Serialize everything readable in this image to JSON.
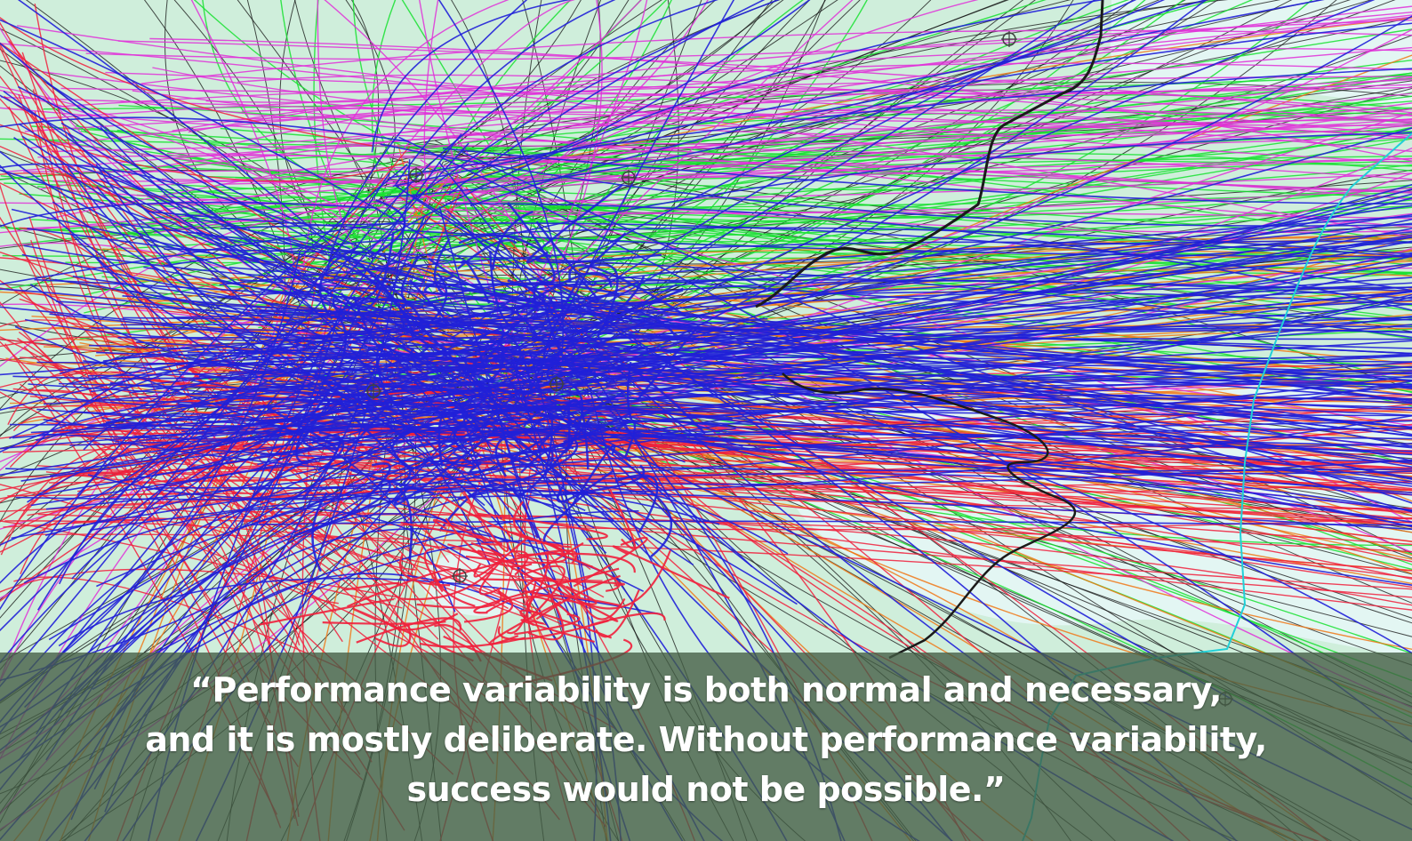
{
  "quote": {
    "line1": "“Performance variability is both normal and necessary,",
    "line2": "and it is mostly deliberate. Without performance variability,",
    "line3": "success would not be possible.”"
  },
  "colors": {
    "land": "#cfeedb",
    "sea": "#e3f6f3",
    "coastline": "#1a1a1a",
    "tracks_blue": "#2020d8",
    "tracks_red": "#f0203c",
    "tracks_magenta": "#e030d8",
    "tracks_green": "#18e030",
    "tracks_orange": "#f07818",
    "tracks_black": "#101010",
    "tracks_cyan": "#20d0d8",
    "caption_band": "#425c44",
    "caption_text": "#ffffff"
  },
  "image": {
    "subject": "flight-tracks-map",
    "track_counts": {
      "blue": 260,
      "black": 170,
      "red": 140,
      "magenta": 90,
      "green": 90,
      "orange": 80
    }
  }
}
